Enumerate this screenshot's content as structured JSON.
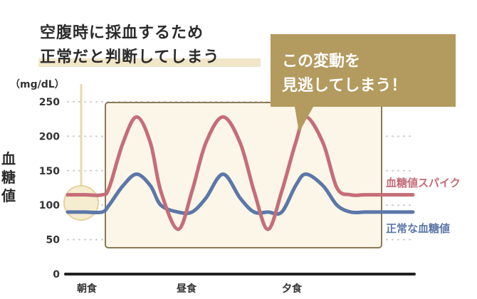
{
  "headline": {
    "line1": "空腹時に採血するため",
    "line2": "正常だと判断してしまう"
  },
  "callout": {
    "line1": "この変動を",
    "line2": "見逃してしまう！"
  },
  "y_unit": "（mg/dL）",
  "y_label": "血糖値",
  "colors": {
    "spike": "#c56d78",
    "normal": "#5b77a8",
    "callout_bg": "#b39a5e",
    "panel_fill": "#fbf6e8",
    "panel_stroke": "#8a7a55",
    "highlight": "#f1e6c8"
  },
  "chart_data": {
    "type": "line",
    "title": "",
    "xlabel": "",
    "ylabel": "血糖値",
    "y_unit": "（mg/dL）",
    "ylim": [
      0,
      250
    ],
    "yticks": [
      0,
      50,
      100,
      150,
      200,
      250
    ],
    "x_tick_labels": [
      "朝食",
      "昼食",
      "夕食"
    ],
    "grid": true,
    "series": [
      {
        "name": "血糖値スパイク",
        "x": [
          0,
          0.25,
          0.5,
          0.6,
          0.8,
          1.0,
          1.2,
          1.35,
          1.6,
          1.8,
          2.0,
          2.25,
          2.5,
          2.7,
          2.9,
          3.1,
          3.3,
          3.45,
          3.7,
          3.9,
          4.1,
          4.3,
          4.5,
          4.75,
          5.0
        ],
        "values": [
          115,
          115,
          115,
          125,
          190,
          228,
          190,
          120,
          65,
          120,
          190,
          228,
          190,
          120,
          65,
          120,
          190,
          228,
          190,
          125,
          115,
          115,
          115,
          115,
          115
        ]
      },
      {
        "name": "正常な血糖値",
        "x": [
          0,
          0.25,
          0.5,
          0.6,
          0.8,
          1.0,
          1.2,
          1.35,
          1.6,
          1.8,
          2.0,
          2.25,
          2.5,
          2.7,
          2.9,
          3.1,
          3.3,
          3.45,
          3.7,
          3.9,
          4.1,
          4.3,
          4.5,
          4.75,
          5.0
        ],
        "values": [
          90,
          90,
          90,
          100,
          128,
          145,
          128,
          100,
          90,
          90,
          110,
          145,
          110,
          90,
          90,
          90,
          128,
          145,
          128,
          100,
          90,
          90,
          90,
          90,
          90
        ]
      }
    ]
  }
}
